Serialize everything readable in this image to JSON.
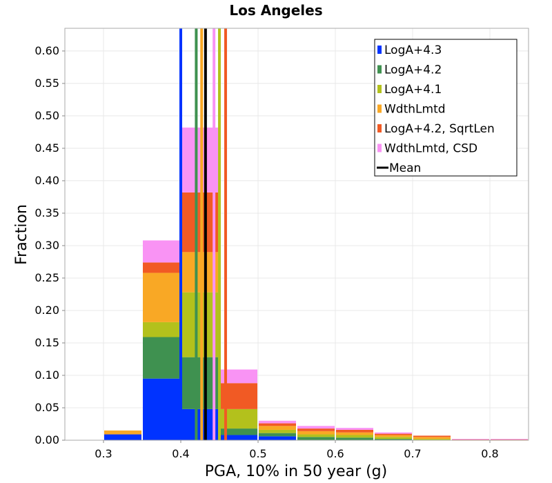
{
  "chart_data": {
    "type": "bar",
    "stacked": true,
    "title": "Los Angeles",
    "xlabel": "PGA, 10% in 50 year (g)",
    "ylabel": "Fraction",
    "xlim": [
      0.25,
      0.85
    ],
    "ylim": [
      0.0,
      0.635
    ],
    "grid": true,
    "legend_position": "top-right",
    "x_ticks": [
      "0.3",
      "0.4",
      "0.5",
      "0.6",
      "0.7",
      "0.8"
    ],
    "y_ticks": [
      "0.00",
      "0.05",
      "0.10",
      "0.15",
      "0.20",
      "0.25",
      "0.30",
      "0.35",
      "0.40",
      "0.45",
      "0.50",
      "0.55",
      "0.60"
    ],
    "bin_width": 0.05,
    "bins": [
      0.3,
      0.35,
      0.4,
      0.45,
      0.5,
      0.55,
      0.6,
      0.65,
      0.7,
      0.75,
      0.8
    ],
    "series": [
      {
        "name": "LogA+4.3",
        "color": "#0033ff",
        "values": [
          0.009,
          0.095,
          0.048,
          0.008,
          0.006,
          0.0,
          0.0,
          0.0,
          0.0,
          0.0,
          0.0
        ]
      },
      {
        "name": "LogA+4.2",
        "color": "#3f9150",
        "values": [
          0.0,
          0.064,
          0.08,
          0.01,
          0.005,
          0.005,
          0.004,
          0.002,
          0.0,
          0.0,
          0.0
        ]
      },
      {
        "name": "LogA+4.1",
        "color": "#b3c11c",
        "values": [
          0.0,
          0.023,
          0.1,
          0.03,
          0.005,
          0.004,
          0.004,
          0.003,
          0.002,
          0.0,
          0.0
        ]
      },
      {
        "name": "WdthLmtd",
        "color": "#f9a825",
        "values": [
          0.006,
          0.076,
          0.062,
          0.0,
          0.006,
          0.005,
          0.004,
          0.003,
          0.003,
          0.0,
          0.0
        ]
      },
      {
        "name": "LogA+4.2, SqrtLen",
        "color": "#f15a24",
        "values": [
          0.0,
          0.016,
          0.092,
          0.04,
          0.004,
          0.004,
          0.004,
          0.002,
          0.002,
          0.001,
          0.001
        ]
      },
      {
        "name": "WdthLmtd, CSD",
        "color": "#f993f4",
        "values": [
          0.0,
          0.034,
          0.1,
          0.021,
          0.004,
          0.004,
          0.003,
          0.002,
          0.0,
          0.001,
          0.001
        ]
      }
    ],
    "mean_lines": [
      {
        "name": "LogA+4.3",
        "color": "#0033ff",
        "x": 0.4
      },
      {
        "name": "LogA+4.2",
        "color": "#3f9150",
        "x": 0.42
      },
      {
        "name": "WdthLmtd",
        "color": "#f9a825",
        "x": 0.427
      },
      {
        "name": "WdthLmtd, CSD",
        "color": "#f993f4",
        "x": 0.443
      },
      {
        "name": "LogA+4.1",
        "color": "#b3c11c",
        "x": 0.45
      },
      {
        "name": "LogA+4.2, SqrtLen",
        "color": "#f15a24",
        "x": 0.458
      }
    ],
    "overall_mean": {
      "name": "Mean",
      "color": "#000000",
      "x": 0.432
    }
  }
}
